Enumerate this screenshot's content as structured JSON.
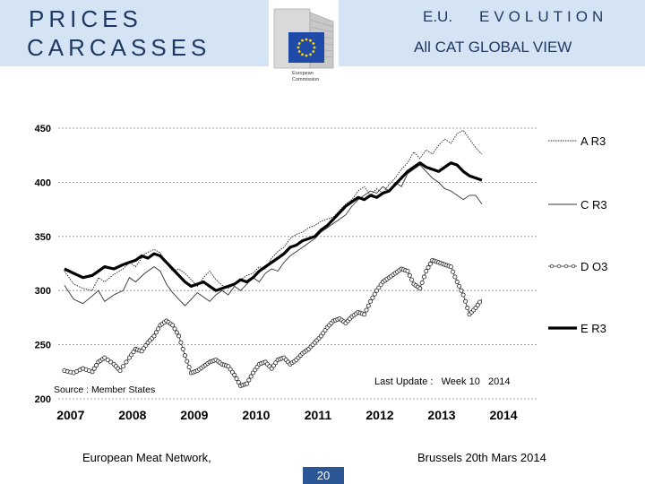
{
  "header": {
    "title_line1": "PRICES",
    "title_line2": "CARCASSES",
    "right_line1_a": "E.U.",
    "right_line1_b": "EVOLUTION",
    "right_line2": "All CAT GLOBAL VIEW",
    "logo_text_1": "European",
    "logo_text_2": "Commission"
  },
  "colors": {
    "header_bg": "#d4e4f4",
    "title": "#1f3864",
    "page_badge": "#2b5797",
    "flag_blue": "#1f4aa8",
    "flag_star": "#ffd700"
  },
  "chart_data": {
    "type": "line",
    "title": "",
    "xlabel": "",
    "ylabel": "",
    "ylim": [
      200,
      450
    ],
    "xlim": [
      2006.85,
      2014.6
    ],
    "yticks": [
      200,
      250,
      300,
      350,
      400,
      450
    ],
    "xticks": [
      "2007",
      "2008",
      "2009",
      "2010",
      "2011",
      "2012",
      "2013",
      "2014"
    ],
    "grid": "horizontal dotted",
    "source_note": "Source : Member States",
    "update_note": "Last Update :   Week 10   2014",
    "series": [
      {
        "name": "A R3",
        "style": "thin-dotted",
        "x": [
          2006.95,
          2007.1,
          2007.25,
          2007.4,
          2007.5,
          2007.6,
          2007.75,
          2007.9,
          2008.0,
          2008.1,
          2008.25,
          2008.4,
          2008.5,
          2008.6,
          2008.7,
          2008.8,
          2008.9,
          2009.0,
          2009.1,
          2009.2,
          2009.3,
          2009.4,
          2009.5,
          2009.6,
          2009.7,
          2009.8,
          2009.9,
          2010.0,
          2010.1,
          2010.2,
          2010.3,
          2010.4,
          2010.5,
          2010.6,
          2010.7,
          2010.8,
          2010.9,
          2011.0,
          2011.1,
          2011.2,
          2011.3,
          2011.4,
          2011.5,
          2011.6,
          2011.7,
          2011.8,
          2011.9,
          2012.0,
          2012.1,
          2012.2,
          2012.3,
          2012.4,
          2012.5,
          2012.6,
          2012.7,
          2012.8,
          2012.9,
          2013.0,
          2013.1,
          2013.2,
          2013.3,
          2013.4,
          2013.5,
          2013.6,
          2013.7
        ],
        "values": [
          318,
          306,
          302,
          300,
          312,
          308,
          315,
          320,
          326,
          322,
          334,
          338,
          335,
          325,
          318,
          320,
          316,
          310,
          304,
          312,
          318,
          310,
          305,
          302,
          306,
          310,
          314,
          316,
          322,
          320,
          330,
          336,
          340,
          348,
          352,
          354,
          358,
          360,
          364,
          366,
          368,
          374,
          380,
          384,
          392,
          396,
          388,
          394,
          390,
          398,
          404,
          412,
          418,
          428,
          422,
          430,
          426,
          434,
          440,
          436,
          445,
          448,
          440,
          432,
          426
        ]
      },
      {
        "name": "C R3",
        "style": "thin",
        "x": [
          2006.95,
          2007.1,
          2007.25,
          2007.4,
          2007.5,
          2007.6,
          2007.75,
          2007.9,
          2008.0,
          2008.1,
          2008.25,
          2008.4,
          2008.5,
          2008.6,
          2008.7,
          2008.8,
          2008.9,
          2009.0,
          2009.1,
          2009.2,
          2009.3,
          2009.4,
          2009.5,
          2009.6,
          2009.7,
          2009.8,
          2009.9,
          2010.0,
          2010.1,
          2010.2,
          2010.3,
          2010.4,
          2010.5,
          2010.6,
          2010.7,
          2010.8,
          2010.9,
          2011.0,
          2011.1,
          2011.2,
          2011.3,
          2011.4,
          2011.5,
          2011.6,
          2011.7,
          2011.8,
          2011.9,
          2012.0,
          2012.1,
          2012.2,
          2012.3,
          2012.4,
          2012.5,
          2012.6,
          2012.7,
          2012.8,
          2012.9,
          2013.0,
          2013.1,
          2013.2,
          2013.3,
          2013.4,
          2013.5,
          2013.6,
          2013.7
        ],
        "values": [
          305,
          292,
          288,
          295,
          300,
          290,
          296,
          300,
          312,
          308,
          316,
          322,
          318,
          306,
          298,
          292,
          286,
          292,
          298,
          294,
          290,
          296,
          300,
          296,
          304,
          300,
          306,
          312,
          308,
          316,
          320,
          318,
          326,
          332,
          336,
          340,
          344,
          348,
          354,
          358,
          362,
          366,
          370,
          378,
          384,
          388,
          392,
          390,
          396,
          392,
          400,
          396,
          408,
          412,
          416,
          410,
          404,
          400,
          394,
          392,
          388,
          384,
          388,
          388,
          380
        ]
      },
      {
        "name": "D O3",
        "style": "circle-markers",
        "x": [
          2006.95,
          2007.1,
          2007.25,
          2007.4,
          2007.5,
          2007.6,
          2007.75,
          2007.85,
          2008.0,
          2008.1,
          2008.2,
          2008.3,
          2008.4,
          2008.5,
          2008.6,
          2008.7,
          2008.8,
          2008.9,
          2009.0,
          2009.1,
          2009.2,
          2009.3,
          2009.4,
          2009.5,
          2009.6,
          2009.7,
          2009.8,
          2009.9,
          2010.0,
          2010.1,
          2010.2,
          2010.3,
          2010.4,
          2010.5,
          2010.6,
          2010.7,
          2010.8,
          2010.9,
          2011.0,
          2011.1,
          2011.2,
          2011.3,
          2011.4,
          2011.5,
          2011.6,
          2011.7,
          2011.8,
          2011.9,
          2012.0,
          2012.1,
          2012.2,
          2012.3,
          2012.4,
          2012.5,
          2012.6,
          2012.7,
          2012.8,
          2012.9,
          2013.0,
          2013.1,
          2013.2,
          2013.3,
          2013.4,
          2013.5,
          2013.6,
          2013.7
        ],
        "values": [
          226,
          224,
          228,
          225,
          234,
          238,
          232,
          226,
          238,
          246,
          244,
          252,
          258,
          268,
          272,
          268,
          258,
          240,
          224,
          226,
          230,
          234,
          236,
          232,
          230,
          222,
          212,
          214,
          224,
          232,
          234,
          228,
          236,
          238,
          232,
          236,
          242,
          246,
          252,
          258,
          266,
          272,
          274,
          270,
          276,
          280,
          278,
          290,
          300,
          308,
          312,
          316,
          320,
          318,
          306,
          302,
          318,
          328,
          326,
          324,
          322,
          308,
          296,
          278,
          284,
          292
        ]
      },
      {
        "name": "E R3",
        "style": "thick",
        "x": [
          2006.95,
          2007.1,
          2007.25,
          2007.4,
          2007.5,
          2007.6,
          2007.75,
          2007.9,
          2008.0,
          2008.1,
          2008.2,
          2008.3,
          2008.4,
          2008.5,
          2008.6,
          2008.7,
          2008.8,
          2008.9,
          2009.0,
          2009.1,
          2009.2,
          2009.3,
          2009.4,
          2009.5,
          2009.6,
          2009.7,
          2009.8,
          2009.9,
          2010.0,
          2010.1,
          2010.2,
          2010.3,
          2010.4,
          2010.5,
          2010.6,
          2010.7,
          2010.8,
          2010.9,
          2011.0,
          2011.1,
          2011.2,
          2011.3,
          2011.4,
          2011.5,
          2011.6,
          2011.7,
          2011.8,
          2011.9,
          2012.0,
          2012.1,
          2012.2,
          2012.3,
          2012.4,
          2012.5,
          2012.6,
          2012.7,
          2012.8,
          2012.9,
          2013.0,
          2013.1,
          2013.2,
          2013.3,
          2013.4,
          2013.5,
          2013.6,
          2013.7
        ],
        "values": [
          320,
          316,
          312,
          314,
          318,
          322,
          320,
          324,
          326,
          328,
          332,
          330,
          334,
          332,
          326,
          320,
          314,
          308,
          304,
          306,
          308,
          304,
          300,
          302,
          304,
          306,
          310,
          308,
          312,
          318,
          322,
          326,
          330,
          334,
          340,
          342,
          346,
          348,
          350,
          356,
          360,
          366,
          372,
          378,
          382,
          386,
          384,
          388,
          386,
          390,
          392,
          398,
          404,
          410,
          414,
          418,
          414,
          412,
          410,
          414,
          418,
          416,
          410,
          406,
          404,
          402
        ]
      }
    ]
  },
  "footer": {
    "left": "European Meat Network,",
    "right": "Brussels 20th Mars 2014",
    "page": "20"
  }
}
